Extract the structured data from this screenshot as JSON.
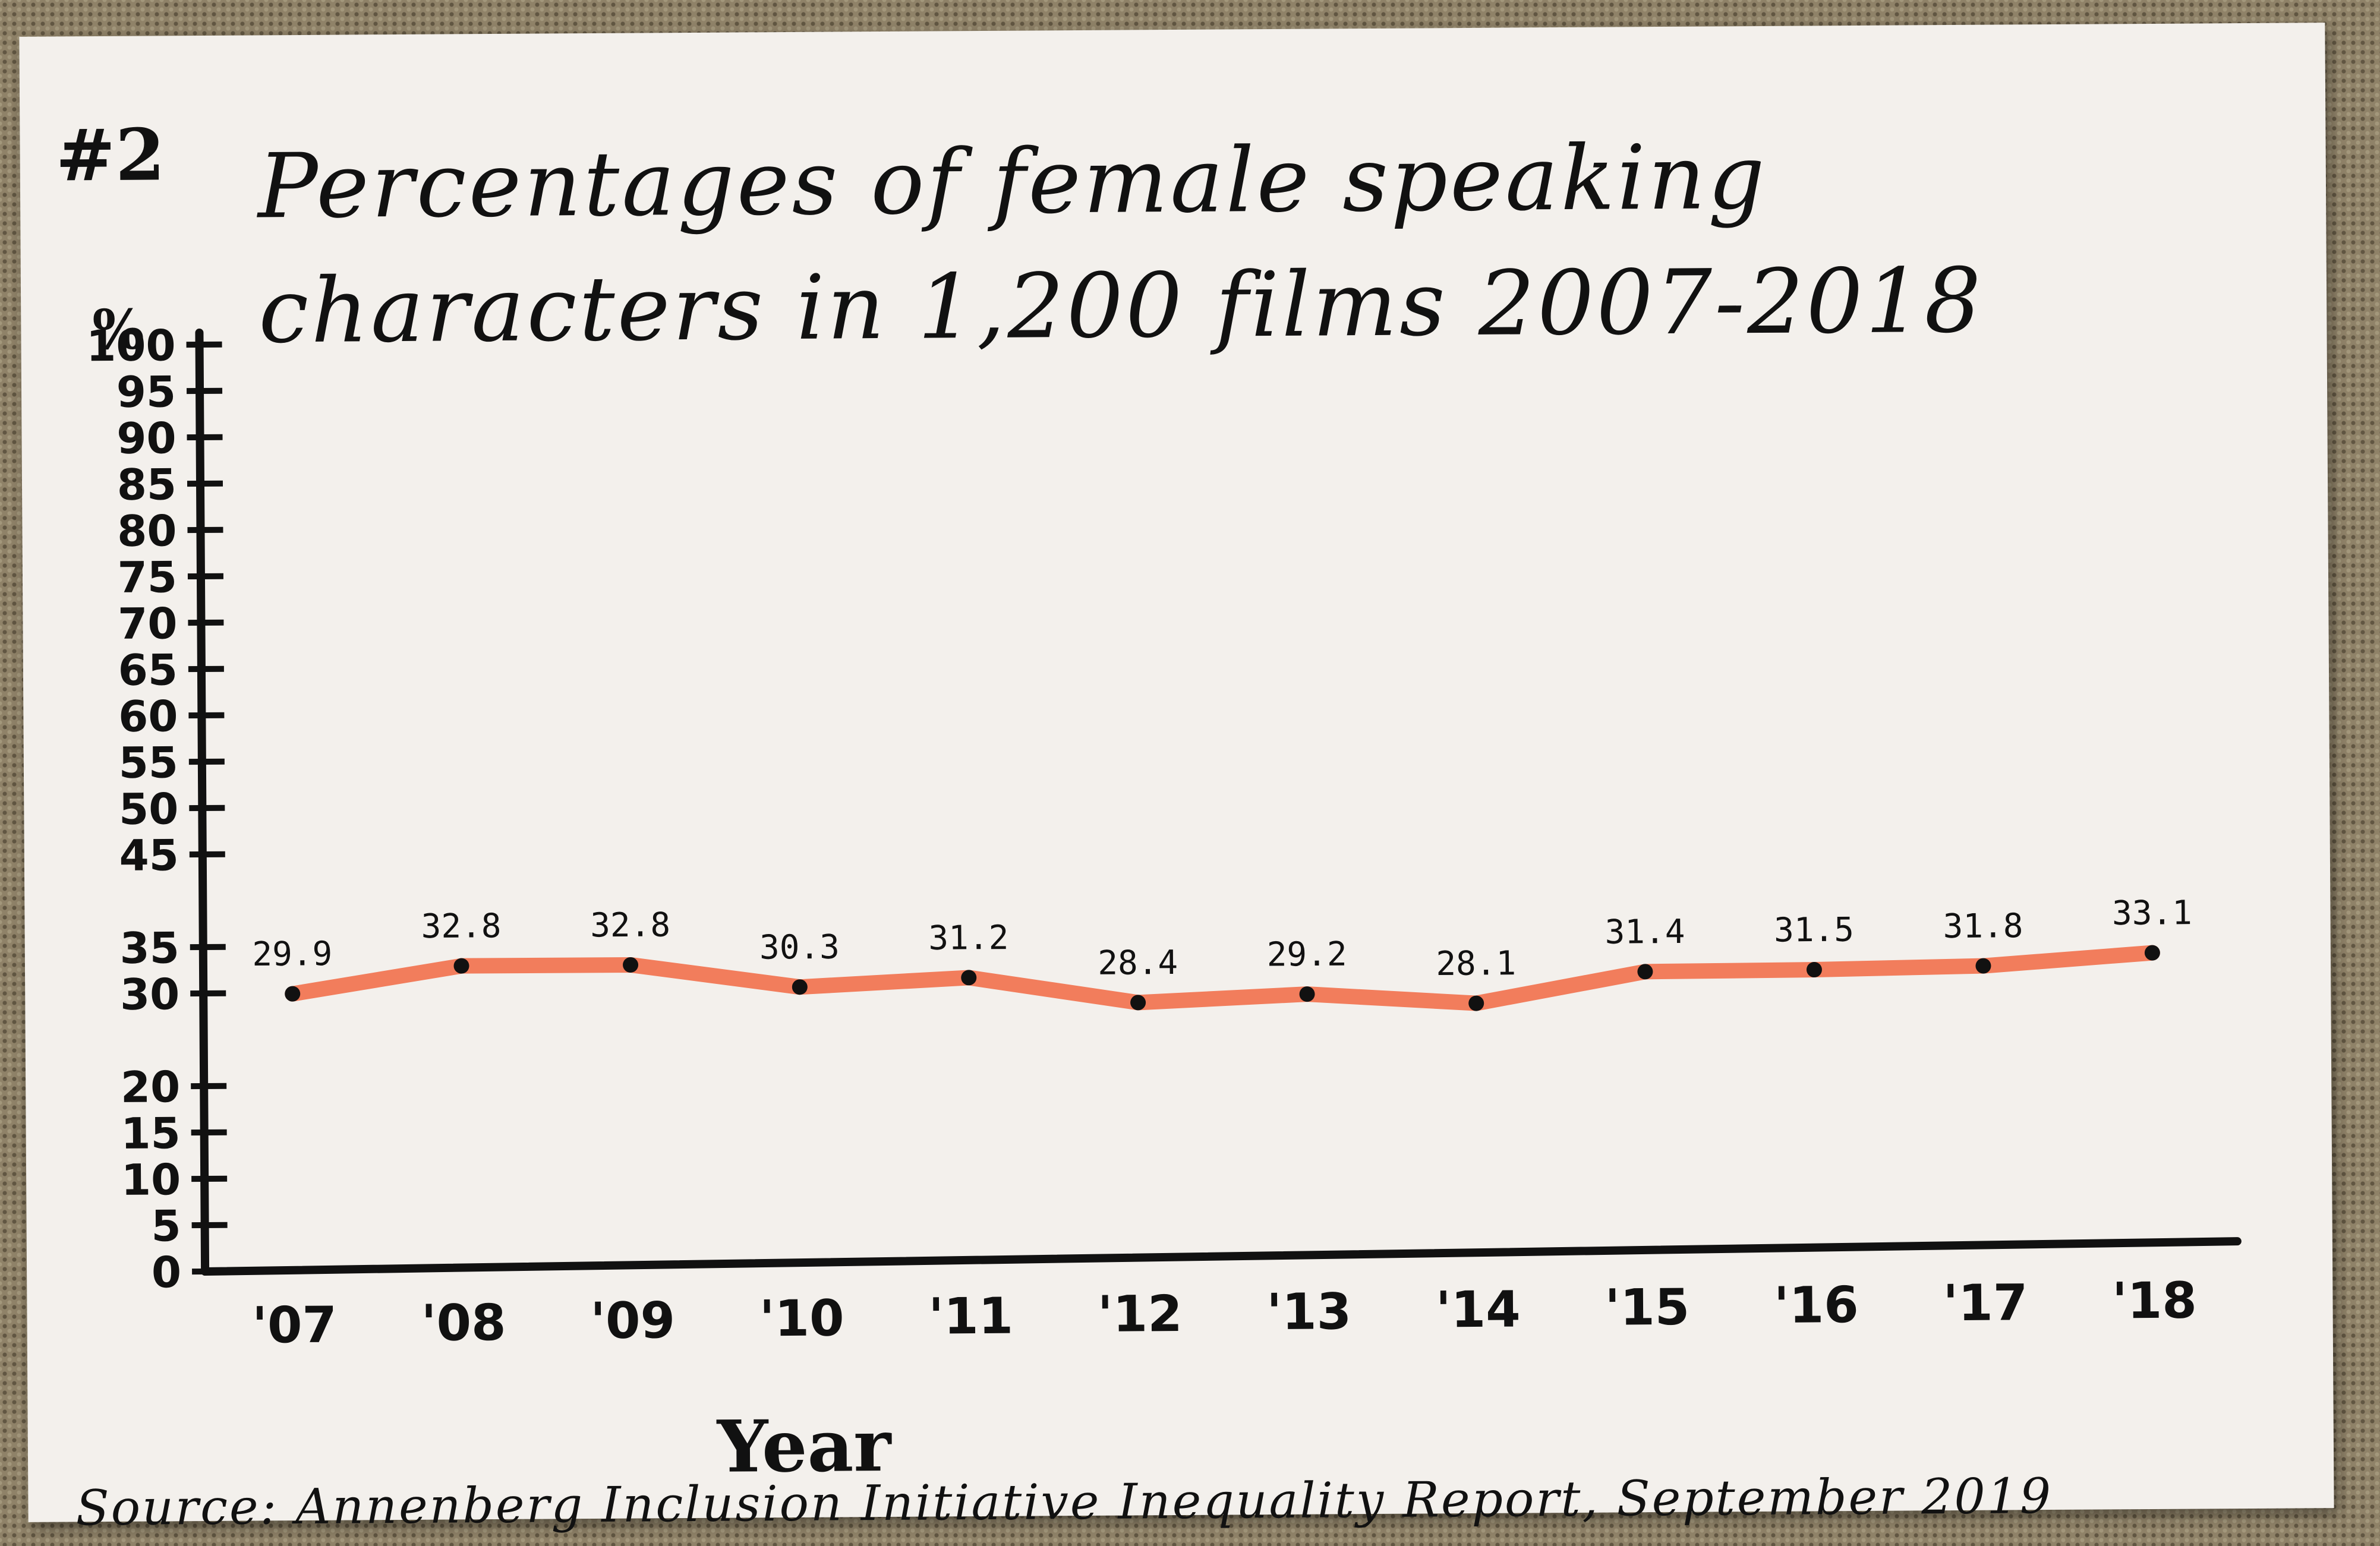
{
  "card_number": "#2",
  "chart_data": {
    "type": "line",
    "title": "Percentages of female speaking characters in 1,200 films 2007-2018",
    "xlabel": "Year",
    "ylabel": "%",
    "ylim": [
      0,
      100
    ],
    "y_ticks": [
      "0",
      "5",
      "10",
      "15",
      "20",
      "30",
      "35",
      "45",
      "50",
      "55",
      "60",
      "65",
      "70",
      "75",
      "80",
      "85",
      "90",
      "95",
      "100"
    ],
    "categories": [
      "'07",
      "'08",
      "'09",
      "'10",
      "'11",
      "'12",
      "'13",
      "'14",
      "'15",
      "'16",
      "'17",
      "'18"
    ],
    "data_labels": [
      "29.9",
      "32.8",
      "32.8",
      "30.3",
      "31.2",
      "28.4",
      "29.2",
      "28.1",
      "31.4",
      "31.5",
      "31.8",
      "33.1"
    ],
    "values": [
      29.9,
      32.8,
      32.8,
      30.3,
      31.2,
      28.4,
      29.2,
      28.1,
      31.4,
      31.5,
      31.8,
      33.1
    ],
    "line_color": "#f27d5c",
    "axis_color": "#111111",
    "grid": false
  },
  "source": "Source: Annenberg Inclusion Initiative Inequality Report, September 2019"
}
